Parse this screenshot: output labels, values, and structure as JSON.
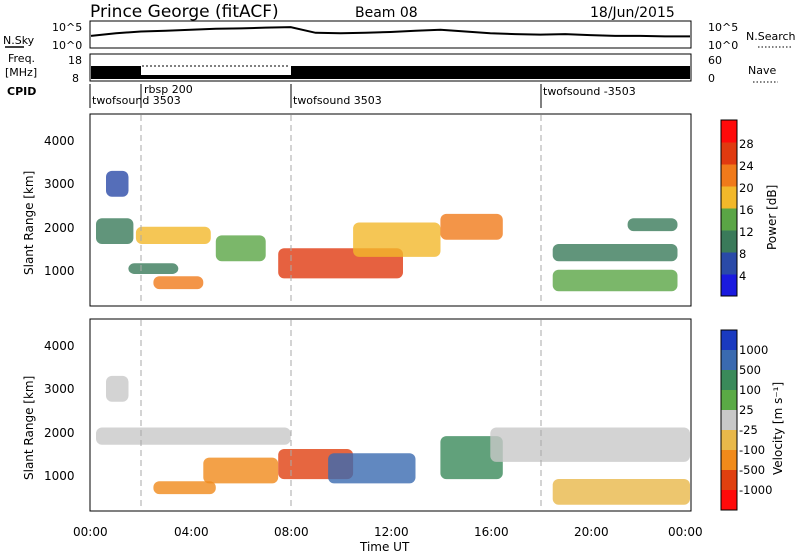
{
  "header": {
    "title": "Prince George (fitACF)",
    "beam": "Beam 08",
    "date": "18/Jun/2015"
  },
  "top_panels": {
    "nsky_label": "N.Sky",
    "nsky_ticks_left": [
      "10^5",
      "10^0"
    ],
    "nsearch_label": "N.Search",
    "nsearch_ticks_right": [
      "10^5",
      "10^0"
    ],
    "freq_label_1": "Freq.",
    "freq_label_2": "[MHz]",
    "freq_ticks_left": [
      "18",
      "8"
    ],
    "nave_label": "Nave",
    "nave_ticks_right": [
      "60",
      "0"
    ],
    "cpid_label": "CPID",
    "cpid_segments": [
      {
        "label": "twofsound 3503",
        "start_hour": 0
      },
      {
        "label": "rbsp 200",
        "start_hour": 2
      },
      {
        "label": "twofsound 3503",
        "start_hour": 8
      },
      {
        "label": "twofsound -3503",
        "start_hour": 18
      }
    ]
  },
  "axes": {
    "ylabel": "Slant Range [km]",
    "yticks": [
      "1000",
      "2000",
      "3000",
      "4000"
    ],
    "xlabel": "Time UT",
    "xticks": [
      "00:00",
      "04:00",
      "08:00",
      "12:00",
      "16:00",
      "20:00",
      "00:00"
    ]
  },
  "power_colorbar": {
    "label": "Power [dB]",
    "ticks": [
      "4",
      "8",
      "12",
      "16",
      "20",
      "24",
      "28"
    ],
    "colors": [
      "#1a1adf",
      "#2a4aa8",
      "#3a7a5a",
      "#5aa545",
      "#f2b82a",
      "#f07a1a",
      "#e03a10",
      "#ff0a0a"
    ]
  },
  "velocity_colorbar": {
    "label": "Velocity [m s⁻¹]",
    "ticks": [
      "1000",
      "500",
      "100",
      "25",
      "-25",
      "-100",
      "-500",
      "-1000"
    ],
    "colors": [
      "#1a3ac0",
      "#3a6ab0",
      "#3a8a5a",
      "#5aaa45",
      "#c8c8c8",
      "#e8b84a",
      "#f08a1a",
      "#e04010",
      "#ff0a0a"
    ]
  },
  "chart_data": [
    {
      "type": "line",
      "title": "Prince George (fitACF)",
      "ylabel": "N.Sky",
      "x_unit": "hours UT",
      "xlim": [
        0,
        24
      ],
      "ylog": true,
      "ylim": [
        1,
        100000
      ],
      "series": [
        {
          "name": "N.Sky",
          "x": [
            0,
            1,
            2,
            3,
            4,
            5,
            6,
            7,
            8,
            9,
            10,
            11,
            12,
            13,
            14,
            15,
            16,
            17,
            18,
            19,
            20,
            21,
            22,
            23,
            24
          ],
          "values": [
            200,
            800,
            2000,
            3000,
            5000,
            8000,
            10000,
            15000,
            20000,
            1000,
            800,
            1000,
            1500,
            3000,
            5000,
            2000,
            800,
            500,
            400,
            500,
            300,
            200,
            200,
            150,
            150
          ]
        }
      ]
    },
    {
      "type": "line",
      "ylabel": "Freq. [MHz]",
      "xlim": [
        0,
        24
      ],
      "ylim": [
        8,
        18
      ],
      "series": [
        {
          "name": "Freq.",
          "x": [
            0,
            2,
            2,
            8,
            8,
            24
          ],
          "values": [
            13,
            13,
            17,
            17,
            13,
            13
          ]
        }
      ]
    },
    {
      "type": "heatmap",
      "ylabel": "Slant Range [km]",
      "xlabel": "Time UT",
      "colorbar_label": "Power [dB]",
      "xlim": [
        0,
        24
      ],
      "ylim": [
        180,
        4600
      ],
      "zlim": [
        0,
        30
      ],
      "blobs": [
        {
          "x": [
            0.2,
            1.7
          ],
          "y": [
            1600,
            2200
          ],
          "z": 10
        },
        {
          "x": [
            0.6,
            1.5
          ],
          "y": [
            2700,
            3300
          ],
          "z": 6
        },
        {
          "x": [
            1.8,
            4.8
          ],
          "y": [
            1600,
            2000
          ],
          "z": 18
        },
        {
          "x": [
            1.5,
            3.5
          ],
          "y": [
            900,
            1150
          ],
          "z": 10
        },
        {
          "x": [
            2.5,
            4.5
          ],
          "y": [
            550,
            850
          ],
          "z": 20
        },
        {
          "x": [
            5.0,
            7.0
          ],
          "y": [
            1200,
            1800
          ],
          "z": 14
        },
        {
          "x": [
            7.5,
            12.5
          ],
          "y": [
            800,
            1500
          ],
          "z": 26
        },
        {
          "x": [
            10.5,
            14.0
          ],
          "y": [
            1300,
            2100
          ],
          "z": 16
        },
        {
          "x": [
            14.0,
            16.5
          ],
          "y": [
            1700,
            2300
          ],
          "z": 20
        },
        {
          "x": [
            18.5,
            23.5
          ],
          "y": [
            1200,
            1600
          ],
          "z": 10
        },
        {
          "x": [
            18.5,
            23.5
          ],
          "y": [
            500,
            1000
          ],
          "z": 12
        },
        {
          "x": [
            21.5,
            23.5
          ],
          "y": [
            1900,
            2200
          ],
          "z": 8
        }
      ]
    },
    {
      "type": "heatmap",
      "ylabel": "Slant Range [km]",
      "xlabel": "Time UT",
      "colorbar_label": "Velocity [m s⁻¹]",
      "xlim": [
        0,
        24
      ],
      "ylim": [
        180,
        4600
      ],
      "blobs": [
        {
          "x": [
            0.2,
            8.0
          ],
          "y": [
            1700,
            2100
          ],
          "z": 0
        },
        {
          "x": [
            0.6,
            1.5
          ],
          "y": [
            2700,
            3300
          ],
          "z": 0
        },
        {
          "x": [
            2.5,
            5.0
          ],
          "y": [
            550,
            850
          ],
          "z": -500
        },
        {
          "x": [
            4.5,
            7.5
          ],
          "y": [
            800,
            1400
          ],
          "z": -300
        },
        {
          "x": [
            7.5,
            10.5
          ],
          "y": [
            900,
            1600
          ],
          "z": -600
        },
        {
          "x": [
            9.5,
            13.0
          ],
          "y": [
            800,
            1500
          ],
          "z": 500
        },
        {
          "x": [
            14.0,
            16.5
          ],
          "y": [
            900,
            1900
          ],
          "z": 200
        },
        {
          "x": [
            16.0,
            24.0
          ],
          "y": [
            1300,
            2100
          ],
          "z": 0
        },
        {
          "x": [
            18.5,
            24.0
          ],
          "y": [
            300,
            900
          ],
          "z": -50
        }
      ]
    }
  ]
}
